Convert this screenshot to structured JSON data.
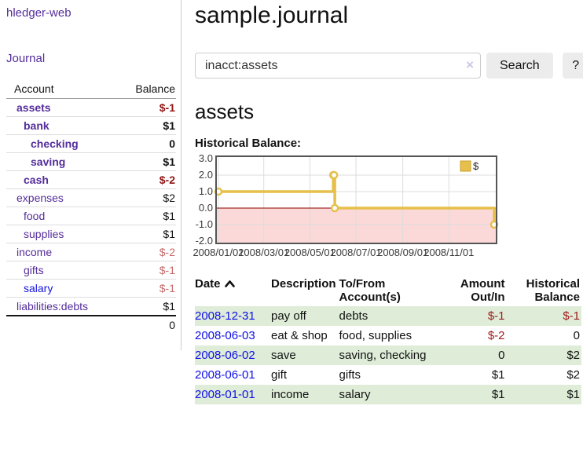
{
  "app": {
    "title": "hledger-web"
  },
  "sidebar": {
    "nav": {
      "journal": "Journal"
    },
    "accounts_header": {
      "account": "Account",
      "balance": "Balance"
    },
    "accounts": [
      {
        "name": "assets",
        "depth": 1,
        "bold": true,
        "name_tone": "purple",
        "balance": "$-1",
        "balance_tone": "neg-dark"
      },
      {
        "name": "bank",
        "depth": 2,
        "bold": true,
        "name_tone": "purple",
        "balance": "$1",
        "balance_tone": "pos"
      },
      {
        "name": "checking",
        "depth": 3,
        "bold": true,
        "name_tone": "purple",
        "balance": "0",
        "balance_tone": "pos"
      },
      {
        "name": "saving",
        "depth": 3,
        "bold": true,
        "name_tone": "purple",
        "balance": "$1",
        "balance_tone": "pos"
      },
      {
        "name": "cash",
        "depth": 2,
        "bold": true,
        "name_tone": "purple",
        "balance": "$-2",
        "balance_tone": "neg-dark"
      },
      {
        "name": "expenses",
        "depth": 1,
        "bold": false,
        "name_tone": "purple",
        "balance": "$2",
        "balance_tone": "pos"
      },
      {
        "name": "food",
        "depth": 2,
        "bold": false,
        "name_tone": "purple",
        "balance": "$1",
        "balance_tone": "pos"
      },
      {
        "name": "supplies",
        "depth": 2,
        "bold": false,
        "name_tone": "purple",
        "balance": "$1",
        "balance_tone": "pos"
      },
      {
        "name": "income",
        "depth": 1,
        "bold": false,
        "name_tone": "purple",
        "balance": "$-2",
        "balance_tone": "neg-light"
      },
      {
        "name": "gifts",
        "depth": 2,
        "bold": false,
        "name_tone": "purple",
        "balance": "$-1",
        "balance_tone": "neg-light"
      },
      {
        "name": "salary",
        "depth": 2,
        "bold": false,
        "name_tone": "blue",
        "balance": "$-1",
        "balance_tone": "neg-light"
      },
      {
        "name": "liabilities:debts",
        "depth": 1,
        "bold": false,
        "name_tone": "purple",
        "balance": "$1",
        "balance_tone": "pos"
      }
    ],
    "total": "0"
  },
  "header": {
    "title": "sample.journal"
  },
  "search": {
    "value": "inacct:assets",
    "clear_label": "×",
    "button_label": "Search",
    "help_label": "?"
  },
  "account_page": {
    "title": "assets",
    "chart_label": "Historical Balance:"
  },
  "chart_data": {
    "type": "line",
    "style": "step",
    "title": "Historical Balance",
    "series": [
      {
        "name": "$",
        "color": "#e6c04a",
        "points": [
          {
            "date": "2008-01-01",
            "day": 0,
            "value": 1
          },
          {
            "date": "2008-06-01",
            "day": 152,
            "value": 2
          },
          {
            "date": "2008-06-02",
            "day": 153,
            "value": 2
          },
          {
            "date": "2008-06-03",
            "day": 154,
            "value": 0
          },
          {
            "date": "2008-12-31",
            "day": 365,
            "value": -1
          }
        ]
      }
    ],
    "x_ticks": [
      {
        "label": "2008/01/01",
        "day": 0
      },
      {
        "label": "2008/03/01",
        "day": 60
      },
      {
        "label": "2008/05/01",
        "day": 121
      },
      {
        "label": "2008/07/01",
        "day": 182
      },
      {
        "label": "2008/09/01",
        "day": 244
      },
      {
        "label": "2008/11/01",
        "day": 305
      }
    ],
    "y_ticks": [
      "3.0",
      "2.0",
      "1.0",
      "0.0",
      "-1.0",
      "-2.0"
    ],
    "ylim": [
      -2,
      3
    ],
    "xlim_days": [
      0,
      365
    ],
    "grid": true,
    "legend": {
      "label": "$",
      "position": "top-right"
    },
    "colors": {
      "line": "#e6c04a",
      "marker_fill": "#ffffff",
      "negative_region": "#fcd9d9",
      "zero_line": "#8b0000",
      "gridline": "#dcdcdc",
      "border": "#545454"
    }
  },
  "transactions": {
    "columns": {
      "date": "Date",
      "description": "Description",
      "accounts_line1": "To/From",
      "accounts_line2": "Account(s)",
      "amount_line1": "Amount",
      "amount_line2": "Out/In",
      "balance_line1": "Historical",
      "balance_line2": "Balance"
    },
    "rows": [
      {
        "date": "2008-12-31",
        "description": "pay off",
        "accounts": "debts",
        "amount": "$-1",
        "amount_neg": true,
        "balance": "$-1",
        "balance_neg": true
      },
      {
        "date": "2008-06-03",
        "description": "eat & shop",
        "accounts": "food, supplies",
        "amount": "$-2",
        "amount_neg": true,
        "balance": "0",
        "balance_neg": false
      },
      {
        "date": "2008-06-02",
        "description": "save",
        "accounts": "saving, checking",
        "amount": "0",
        "amount_neg": false,
        "balance": "$2",
        "balance_neg": false
      },
      {
        "date": "2008-06-01",
        "description": "gift",
        "accounts": "gifts",
        "amount": "$1",
        "amount_neg": false,
        "balance": "$2",
        "balance_neg": false
      },
      {
        "date": "2008-01-01",
        "description": "income",
        "accounts": "salary",
        "amount": "$1",
        "amount_neg": false,
        "balance": "$1",
        "balance_neg": false
      }
    ]
  }
}
